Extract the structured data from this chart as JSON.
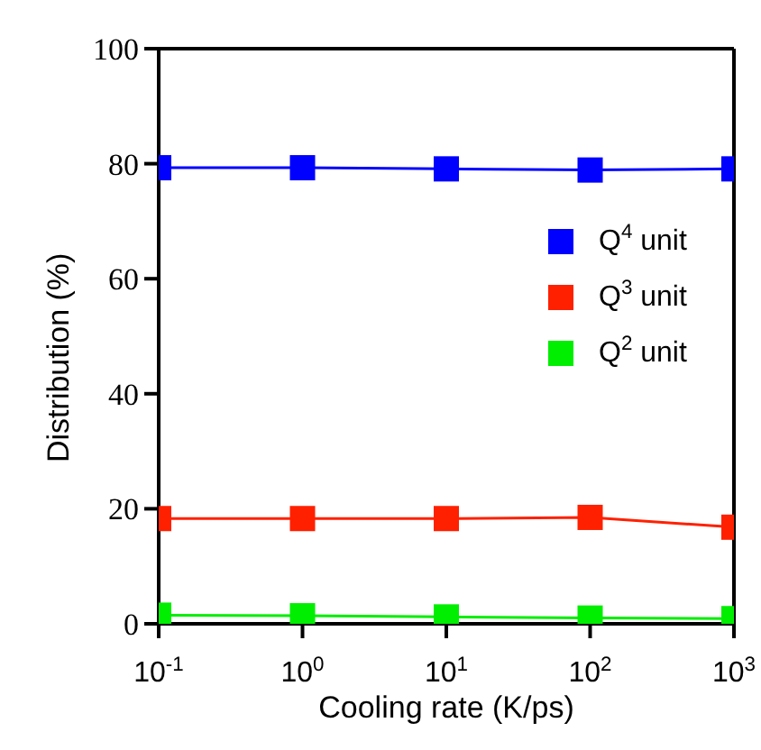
{
  "chart_data": {
    "type": "line",
    "xlabel": "Cooling rate (K/ps)",
    "ylabel": "Distribution (%)",
    "x": [
      0.1,
      1,
      10,
      100,
      1000
    ],
    "series": [
      {
        "name": "Q$^{4}$ unit",
        "color": "#0000ff",
        "values": [
          79.3,
          79.3,
          79.1,
          78.9,
          79.1
        ]
      },
      {
        "name": "Q$^{3}$ unit",
        "color": "#ff2000",
        "values": [
          18.3,
          18.3,
          18.3,
          18.5,
          16.8
        ]
      },
      {
        "name": "Q$^{2}$ unit",
        "color": "#00ee00",
        "values": [
          1.5,
          1.4,
          1.2,
          1.0,
          0.9
        ]
      }
    ],
    "log": "x",
    "xlim": [
      0.1,
      1000
    ],
    "xticks": [
      {
        "value": 0.1,
        "label": "10$^{-1}$"
      },
      {
        "value": 1,
        "label": "10$^{0}$"
      },
      {
        "value": 10,
        "label": "10$^{1}$"
      },
      {
        "value": 100,
        "label": "10$^{2}$"
      },
      {
        "value": 1000,
        "label": "10$^{3}$"
      }
    ],
    "ylim": [
      0,
      100
    ],
    "yticks": [
      0,
      20,
      40,
      60,
      80,
      100
    ],
    "marker": "square",
    "line_style": "solid",
    "legend": "right",
    "grid": false
  }
}
